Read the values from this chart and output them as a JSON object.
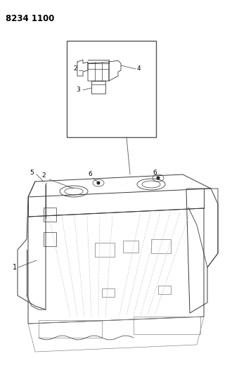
{
  "title_code": "8234 1100",
  "bg": "#ffffff",
  "lc": "#3a3a3a",
  "fig_w": 3.4,
  "fig_h": 5.33,
  "dpi": 100
}
